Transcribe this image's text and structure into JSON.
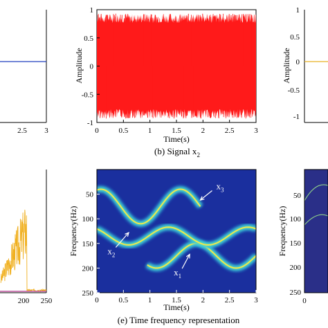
{
  "chart_data": [
    {
      "type": "line",
      "panel": "left-top (cropped)",
      "x_ticks": [
        "2.5",
        "3"
      ],
      "series": [
        {
          "color": "#1f3fbf",
          "x": [
            0,
            3
          ],
          "y": [
            0,
            0
          ]
        }
      ]
    },
    {
      "type": "area",
      "panel": "(b)",
      "caption": "(b) Signal x",
      "caption_sub": "2",
      "xlabel": "Time(s)",
      "ylabel": "Amplitude",
      "xlim": [
        0,
        3
      ],
      "ylim": [
        -1,
        1
      ],
      "x_ticks": [
        "0",
        "0.5",
        "1",
        "1.5",
        "2",
        "2.5",
        "3"
      ],
      "y_ticks": [
        "-1",
        "-0.5",
        "0",
        "0.5",
        "1"
      ],
      "series": [
        {
          "color": "#ff1a1a",
          "envelope_x": [
            0,
            1,
            2,
            3
          ],
          "envelope_min": [
            -0.93,
            -0.93,
            -0.93,
            -0.93
          ],
          "envelope_max": [
            0.93,
            0.93,
            0.93,
            0.93
          ]
        }
      ]
    },
    {
      "type": "line",
      "panel": "right-top (cropped)",
      "y_ticks": [
        "1",
        "0.5",
        "0",
        "-0.5",
        "-1"
      ],
      "series": [
        {
          "color": "#e8b020",
          "x": [
            0,
            3
          ],
          "y": [
            0,
            0
          ]
        }
      ]
    },
    {
      "type": "line",
      "panel": "left-bottom (cropped)",
      "x_ticks": [
        "200",
        "250"
      ],
      "series": [
        {
          "color": "#f0b020",
          "peak_x": 205,
          "peak_y": 0.75
        }
      ]
    },
    {
      "type": "heatmap",
      "panel": "(e)",
      "caption": "(e) Time frequency representation",
      "xlabel": "Time(s)",
      "ylabel": "Frequency(Hz)",
      "xlim": [
        0,
        3
      ],
      "ylim": [
        250,
        0
      ],
      "x_ticks": [
        "0",
        "0.5",
        "1",
        "1.5",
        "2",
        "2.5",
        "3"
      ],
      "y_ticks": [
        "50",
        "100",
        "150",
        "200",
        "250"
      ],
      "background": "#1a2f9e",
      "annotations": [
        {
          "label": "x",
          "sub": "3",
          "arrow_to": [
            1.95,
            62
          ]
        },
        {
          "label": "x",
          "sub": "2",
          "arrow_to": [
            0.6,
            128
          ]
        },
        {
          "label": "x",
          "sub": "1",
          "arrow_to": [
            1.75,
            172
          ]
        }
      ],
      "series": [
        {
          "name_label": "x1",
          "t_start": 0.95,
          "t_end": 3.0,
          "center_hz": 175,
          "amplitude_hz": 25,
          "period_s": 1.5,
          "phase": 0
        },
        {
          "name_label": "x2",
          "t_start": 0.0,
          "t_end": 3.0,
          "center_hz": 135,
          "amplitude_hz": 18,
          "period_s": 1.5,
          "phase": 0.7
        },
        {
          "name_label": "x3",
          "t_start": 0.0,
          "t_end": 1.95,
          "center_hz": 75,
          "amplitude_hz": 35,
          "period_s": 1.5,
          "phase": 0.4
        }
      ]
    },
    {
      "type": "heatmap",
      "panel": "right-bottom (cropped)",
      "ylabel": "Frequency(Hz)",
      "y_ticks": [
        "50",
        "100",
        "150",
        "200",
        "250"
      ],
      "x_ticks": [
        "0"
      ],
      "background": "#2a2f88"
    }
  ]
}
